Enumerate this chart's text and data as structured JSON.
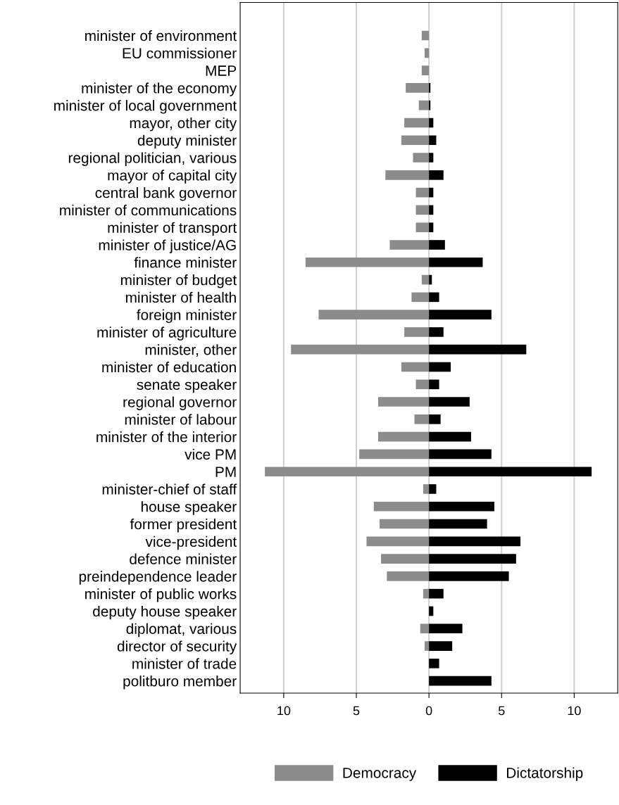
{
  "chart_data": {
    "type": "bar",
    "orientation": "horizontal",
    "categories": [
      "minister of environment",
      "EU commissioner",
      "MEP",
      "minister of the economy",
      "minister of local government",
      "mayor, other city",
      "deputy minister",
      "regional politician, various",
      "mayor of capital city",
      "central bank governor",
      "minister of communications",
      "minister of transport",
      "minister of justice/AG",
      "finance minister",
      "minister of budget",
      "minister of health",
      "foreign minister",
      "minister of agriculture",
      "minister, other",
      "minister of education",
      "senate speaker",
      "regional governor",
      "minister of labour",
      "minister of the interior",
      "vice PM",
      "PM",
      "minister-chief of staff",
      "house speaker",
      "former president",
      "vice-president",
      "defence minister",
      "preindependence leader",
      "minister of public works",
      "deputy house speaker",
      "diplomat, various",
      "director of security",
      "minister of trade",
      "politburo member"
    ],
    "series": [
      {
        "name": "Democracy",
        "color": "#8c8c8c",
        "values": [
          -0.5,
          -0.3,
          -0.5,
          -1.6,
          -0.7,
          -1.7,
          -1.9,
          -1.1,
          -3.0,
          -0.9,
          -0.9,
          -0.9,
          -2.7,
          -8.5,
          -0.5,
          -1.2,
          -7.6,
          -1.7,
          -9.5,
          -1.9,
          -0.9,
          -3.5,
          -1.0,
          -3.5,
          -4.8,
          -11.3,
          -0.4,
          -3.8,
          -3.4,
          -4.3,
          -3.3,
          -2.9,
          -0.4,
          0,
          -0.6,
          -0.3,
          0,
          0
        ]
      },
      {
        "name": "Dictatorship",
        "color": "#000000",
        "values": [
          0,
          0,
          0,
          0.1,
          0.1,
          0.3,
          0.5,
          0.3,
          1.0,
          0.3,
          0.3,
          0.3,
          1.1,
          3.7,
          0.2,
          0.7,
          4.3,
          1.0,
          6.7,
          1.5,
          0.7,
          2.8,
          0.8,
          2.9,
          4.3,
          11.2,
          0.5,
          4.5,
          4.0,
          6.3,
          6.0,
          5.5,
          1.0,
          0.3,
          2.3,
          1.6,
          0.7,
          4.3
        ]
      }
    ],
    "xlim": [
      -13,
      13
    ],
    "xticks": [
      {
        "value": -10,
        "label": "10"
      },
      {
        "value": -5,
        "label": "5"
      },
      0,
      5,
      10
    ],
    "grid": "x",
    "legend": "bottom",
    "stacked": true
  }
}
